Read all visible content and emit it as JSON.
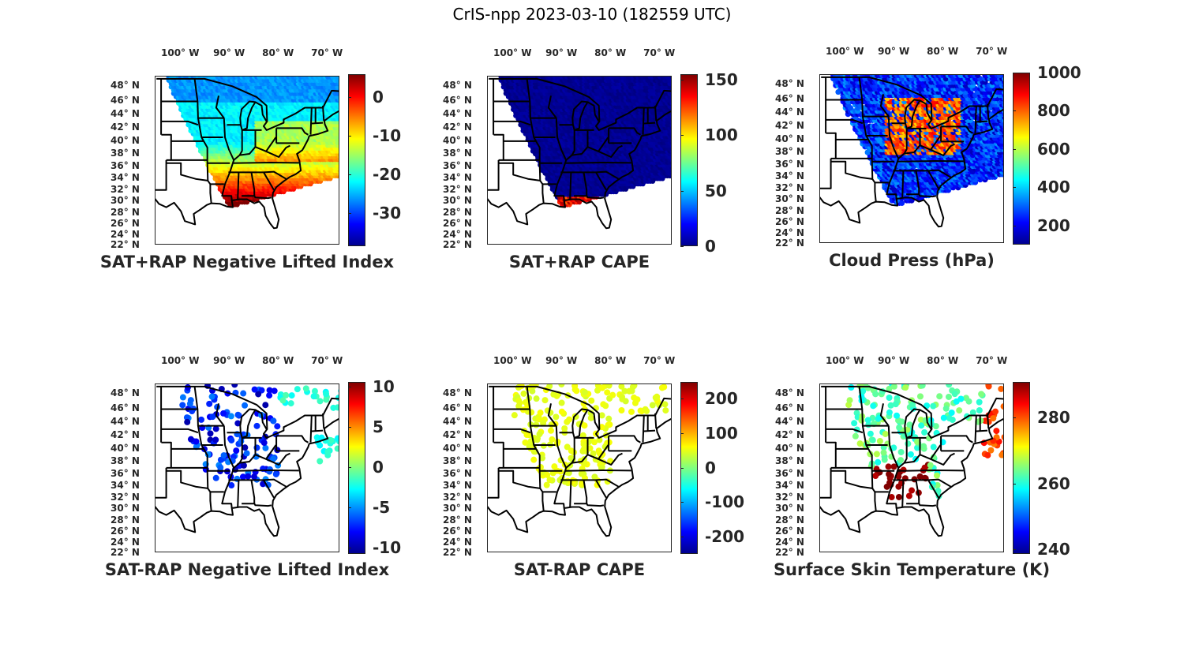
{
  "figure_title": "CrIS-npp 2023-03-10 (182559 UTC)",
  "axes": {
    "lon_ticks": [
      {
        "value": -100,
        "label": "100° W"
      },
      {
        "value": -90,
        "label": "90° W"
      },
      {
        "value": -80,
        "label": "80° W"
      },
      {
        "value": -70,
        "label": "70° W"
      }
    ],
    "lat_ticks": [
      {
        "value": 48,
        "label": "48° N"
      },
      {
        "value": 46,
        "label": "46° N"
      },
      {
        "value": 44,
        "label": "44° N"
      },
      {
        "value": 42,
        "label": "42° N"
      },
      {
        "value": 40,
        "label": "40° N"
      },
      {
        "value": 38,
        "label": "38° N"
      },
      {
        "value": 36,
        "label": "36° N"
      },
      {
        "value": 34,
        "label": "34° N"
      },
      {
        "value": 32,
        "label": "32° N"
      },
      {
        "value": 30,
        "label": "30° N"
      },
      {
        "value": 28,
        "label": "28° N"
      },
      {
        "value": 26,
        "label": "26° N"
      },
      {
        "value": 24,
        "label": "24° N"
      },
      {
        "value": 22,
        "label": "22° N"
      }
    ]
  },
  "panels": [
    {
      "id": "sat-rap-neg-li",
      "title": "SAT+RAP Negative Lifted Index",
      "colorbar": {
        "min": -38.6,
        "max": 5.9,
        "ticks": [
          0,
          -10,
          -20,
          -30
        ],
        "tick_labels": [
          "0",
          "-10",
          "-20",
          "-30"
        ]
      }
    },
    {
      "id": "sat-rap-cape",
      "title": "SAT+RAP CAPE",
      "colorbar": {
        "min": 0,
        "max": 155,
        "ticks": [
          150,
          100,
          50,
          0
        ],
        "tick_labels": [
          "150",
          "100",
          "50",
          "0"
        ]
      }
    },
    {
      "id": "cloud-press",
      "title": "Cloud Press (hPa)",
      "colorbar": {
        "min": 100,
        "max": 1000,
        "ticks": [
          1000,
          800,
          600,
          400,
          200
        ],
        "tick_labels": [
          "1000",
          "800",
          "600",
          "400",
          "200"
        ]
      }
    },
    {
      "id": "sat-minus-rap-neg-li",
      "title": "SAT-RAP Negative Lifted Index",
      "colorbar": {
        "min": -10.8,
        "max": 10.6,
        "ticks": [
          10,
          5,
          0,
          -5,
          -10
        ],
        "tick_labels": [
          "10",
          "5",
          "0",
          "-5",
          "-10"
        ]
      }
    },
    {
      "id": "sat-minus-rap-cape",
      "title": "SAT-RAP CAPE",
      "colorbar": {
        "min": -250,
        "max": 248,
        "ticks": [
          200,
          100,
          0,
          -100,
          -200
        ],
        "tick_labels": [
          "200",
          "100",
          "0",
          "-100",
          "-200"
        ]
      }
    },
    {
      "id": "skin-temp",
      "title": "Surface Skin Temperature (K)",
      "colorbar": {
        "min": 238.6,
        "max": 290.8,
        "ticks": [
          280,
          260,
          240
        ],
        "tick_labels": [
          "280",
          "260",
          "240"
        ]
      }
    }
  ]
}
